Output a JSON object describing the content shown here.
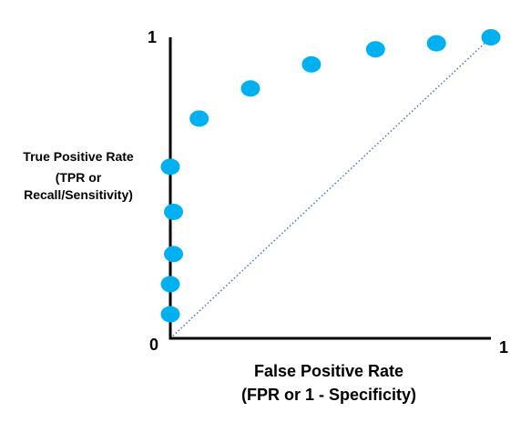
{
  "chart_data": {
    "type": "scatter",
    "title": "",
    "xlabel_lines": [
      "False Positive Rate",
      "(FPR or 1 - Specificity)"
    ],
    "ylabel_lines": [
      "True Positive Rate",
      "(TPR or",
      "Recall/Sensitivity)"
    ],
    "xlim": [
      0,
      1
    ],
    "ylim": [
      0,
      1
    ],
    "origin_label": "0",
    "x_max_label": "1",
    "y_max_label": "1",
    "grid": false,
    "series": [
      {
        "points": [
          {
            "x": 0.0,
            "y": 0.08
          },
          {
            "x": 0.0,
            "y": 0.18
          },
          {
            "x": 0.01,
            "y": 0.28
          },
          {
            "x": 0.01,
            "y": 0.42
          },
          {
            "x": 0.0,
            "y": 0.57
          },
          {
            "x": 0.09,
            "y": 0.73
          },
          {
            "x": 0.25,
            "y": 0.83
          },
          {
            "x": 0.44,
            "y": 0.91
          },
          {
            "x": 0.64,
            "y": 0.96
          },
          {
            "x": 0.83,
            "y": 0.98
          },
          {
            "x": 1.0,
            "y": 1.0
          }
        ]
      }
    ],
    "reference_line": {
      "from": [
        0,
        0
      ],
      "to": [
        1,
        1
      ],
      "style": "dotted"
    },
    "colors": {
      "points": "#00B0F0",
      "axes": "#000000",
      "reference_line": "#4472C4"
    }
  }
}
